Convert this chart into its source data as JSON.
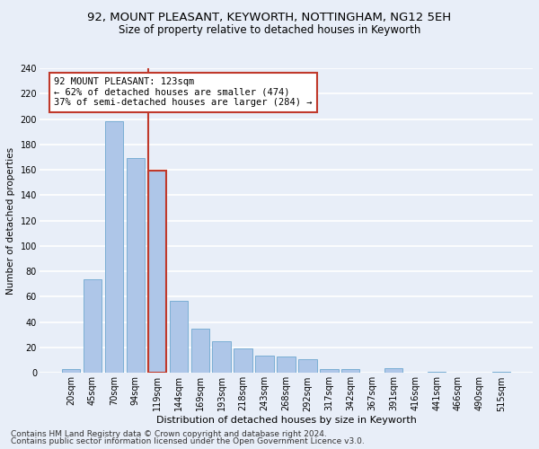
{
  "title1": "92, MOUNT PLEASANT, KEYWORTH, NOTTINGHAM, NG12 5EH",
  "title2": "Size of property relative to detached houses in Keyworth",
  "xlabel": "Distribution of detached houses by size in Keyworth",
  "ylabel": "Number of detached properties",
  "categories": [
    "20sqm",
    "45sqm",
    "70sqm",
    "94sqm",
    "119sqm",
    "144sqm",
    "169sqm",
    "193sqm",
    "218sqm",
    "243sqm",
    "268sqm",
    "292sqm",
    "317sqm",
    "342sqm",
    "367sqm",
    "391sqm",
    "416sqm",
    "441sqm",
    "466sqm",
    "490sqm",
    "515sqm"
  ],
  "values": [
    3,
    74,
    198,
    169,
    159,
    57,
    35,
    25,
    19,
    14,
    13,
    11,
    3,
    3,
    0,
    4,
    0,
    1,
    0,
    0,
    1
  ],
  "bar_color": "#aec6e8",
  "bar_edge_color": "#7aaed4",
  "highlight_bar_edge_color": "#c0392b",
  "vline_color": "#c0392b",
  "annotation_text": "92 MOUNT PLEASANT: 123sqm\n← 62% of detached houses are smaller (474)\n37% of semi-detached houses are larger (284) →",
  "annotation_box_color": "white",
  "annotation_box_edge_color": "#c0392b",
  "ylim": [
    0,
    240
  ],
  "yticks": [
    0,
    20,
    40,
    60,
    80,
    100,
    120,
    140,
    160,
    180,
    200,
    220,
    240
  ],
  "footnote1": "Contains HM Land Registry data © Crown copyright and database right 2024.",
  "footnote2": "Contains public sector information licensed under the Open Government Licence v3.0.",
  "bg_color": "#e8eef8",
  "plot_bg_color": "#e8eef8",
  "grid_color": "white",
  "title1_fontsize": 9.5,
  "title2_fontsize": 8.5,
  "xlabel_fontsize": 8,
  "ylabel_fontsize": 7.5,
  "tick_fontsize": 7,
  "annot_fontsize": 7.5,
  "footnote_fontsize": 6.5,
  "highlight_bar_index": 4
}
